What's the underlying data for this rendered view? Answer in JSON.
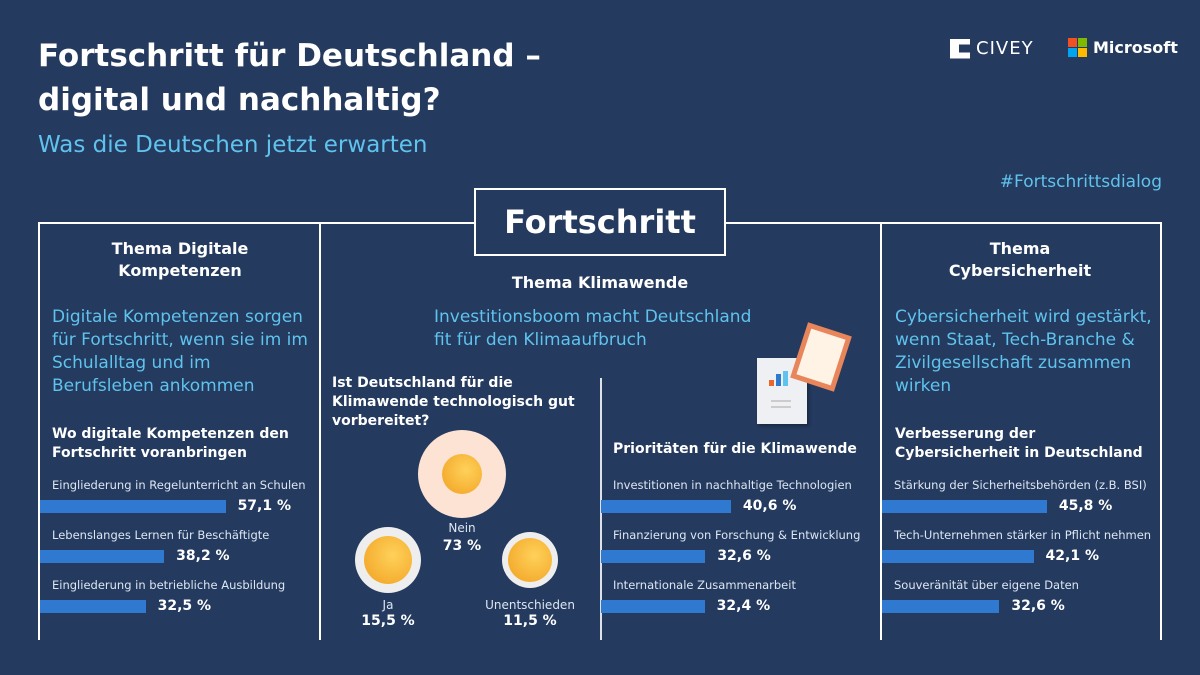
{
  "header": {
    "title_line1": "Fortschritt für Deutschland –",
    "title_line2": "digital und nachhaltig?",
    "subtitle": "Was die Deutschen jetzt erwarten",
    "hashtag": "#Fortschrittsdialog",
    "logo_civey": "CIVEY",
    "logo_microsoft": "Microsoft",
    "center_box": "Fortschritt"
  },
  "colors": {
    "background": "#243a5e",
    "accent": "#5fc3ee",
    "bar": "#2f7ad0",
    "face": "#f5b52e",
    "face_bg_large": "#fde3d4"
  },
  "columns": [
    {
      "heading": "Thema Digitale Kompetenzen",
      "lead": "Digitale Kompetenzen sorgen für Fortschritt, wenn sie im im Schulalltag und im Berufsleben ankommen",
      "subheading": "Wo digitale Kompetenzen den Fortschritt voranbringen"
    },
    {
      "heading": "Thema Klimawende",
      "lead": "Investitionsboom macht Deutschland fit für den Klimaaufbruch",
      "question": "Ist Deutschland für die Klimawende technologisch gut vorbereitet?",
      "subheading": "Prioritäten für die Klimawende"
    },
    {
      "heading": "Thema Cybersicherheit",
      "lead": "Cybersicherheit wird gestärkt, wenn Staat, Tech-Branche & Zivilgesellschaft zusammen wirken",
      "subheading": "Verbesserung der Cybersicherheit in Deutschland"
    }
  ],
  "chart_data": [
    {
      "type": "bar",
      "orientation": "horizontal",
      "title": "Wo digitale Kompetenzen den Fortschritt voranbringen",
      "categories": [
        "Eingliederung in Regelunterricht an Schulen",
        "Lebenslanges Lernen für Beschäftigte",
        "Eingliederung in betriebliche Ausbildung"
      ],
      "values": [
        57.1,
        38.2,
        32.5
      ],
      "labels": [
        "57,1 %",
        "38,2 %",
        "32,5 %"
      ],
      "unit": "%"
    },
    {
      "type": "pie",
      "title": "Ist Deutschland für die Klimawende technologisch gut vorbereitet?",
      "categories": [
        "Nein",
        "Ja",
        "Unentschieden"
      ],
      "values": [
        73,
        15.5,
        11.5
      ],
      "labels": [
        "73 %",
        "15,5 %",
        "11,5 %"
      ],
      "icons": [
        "angry-face-icon",
        "laughing-face-icon",
        "neutral-face-icon"
      ],
      "unit": "%"
    },
    {
      "type": "bar",
      "orientation": "horizontal",
      "title": "Prioritäten für die Klimawende",
      "categories": [
        "Investitionen in nachhaltige Technologien",
        "Finanzierung von Forschung & Entwicklung",
        "Internationale Zusammenarbeit"
      ],
      "values": [
        40.6,
        32.6,
        32.4
      ],
      "labels": [
        "40,6 %",
        "32,6 %",
        "32,4 %"
      ],
      "unit": "%"
    },
    {
      "type": "bar",
      "orientation": "horizontal",
      "title": "Verbesserung der Cybersicherheit in Deutschland",
      "categories": [
        "Stärkung der Sicherheitsbehörden (z.B. BSI)",
        "Tech-Unternehmen stärker in Pflicht nehmen",
        "Souveränität über eigene Daten"
      ],
      "values": [
        45.8,
        42.1,
        32.6
      ],
      "labels": [
        "45,8 %",
        "42,1 %",
        "32,6 %"
      ],
      "unit": "%"
    }
  ]
}
